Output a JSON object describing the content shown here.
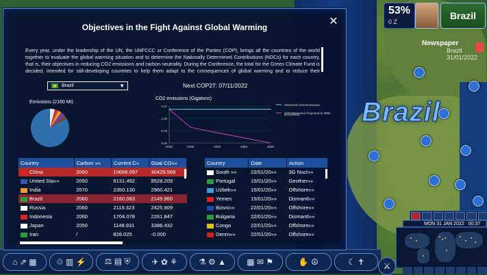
{
  "panel": {
    "title": "Objectives in the Fight Against Global Warming",
    "description": "Every year, under the leadership of the UN, the UNFCCC or Conference of the Parties (COP), brings all the countries of the world together to evaluate the global warming situation and to determine the Nationally Determined Contributions (NDCs) for each country, that is, their objectives in reducing CO2 emissions and carbon neutrality. During the Conference, the total for the Green Climate Fund is decided, intended for still-developing countries to help them adapt to the consequences of global warming and to reduce their emissions. Ultimately, objectives set are to",
    "selected_country": "Brazil",
    "next_cop": "Next COP27: 07/11/2022",
    "emissions_label": "Emissions (2160 Mt)"
  },
  "chart_data": {
    "type": "line",
    "title": "CO2 emissions (Gigatons)",
    "x": [
      2022,
      2030,
      2040,
      2050,
      2060
    ],
    "xlim": [
      2022,
      2060
    ],
    "ylim": [
      0,
      2.37
    ],
    "yticks": [
      "0.00",
      "0.79",
      "1.58",
      "2.37"
    ],
    "xticks": [
      "2022",
      "2030",
      "2040",
      "2050",
      "2060"
    ],
    "series": [
      {
        "name": "Observed CO2 Emissions",
        "color": "#7fd6f0",
        "values": [
          2.16,
          2.16,
          2.16,
          2.16,
          2.16
        ]
      },
      {
        "name": "CO2 Emissions Projected to 2060",
        "color": "#d040d0",
        "values": [
          2.16,
          1.0,
          0.66,
          0.33,
          0.0
        ]
      }
    ],
    "projected_label_date": "01/01/2022"
  },
  "pie_colors": [
    "#e8eaf0",
    "#cc3333",
    "#e0a020",
    "#7c3aa0",
    "#6a5030",
    "#2f6fb0"
  ],
  "left_table": {
    "headers": [
      "Country",
      "Carbon »»",
      "Current C»",
      "Goal CO»»"
    ],
    "rows": [
      {
        "country": "China",
        "carbon": "2060",
        "current": "10668.097",
        "goal": "30426.569",
        "flag": "#d22"
      },
      {
        "country": "United Sta»»",
        "carbon": "2050",
        "current": "6131.492",
        "goal": "9528.209",
        "flag": "#3355aa"
      },
      {
        "country": "India",
        "carbon": "2070",
        "current": "2350.130",
        "goal": "2960.421",
        "flag": "#f49a33"
      },
      {
        "country": "Brazil",
        "carbon": "2060",
        "current": "2160.063",
        "goal": "2149.960",
        "flag": "#2a9d3a"
      },
      {
        "country": "Russia",
        "carbon": "2060",
        "current": "2119.323",
        "goal": "2425.909",
        "flag": "#ffffff"
      },
      {
        "country": "Indonesia",
        "carbon": "2060",
        "current": "1704.078",
        "goal": "2261.847",
        "flag": "#d22"
      },
      {
        "country": "Japan",
        "carbon": "2050",
        "current": "1148.931",
        "goal": "3386.432",
        "flag": "#ffffff"
      },
      {
        "country": "Iran",
        "carbon": "/",
        "current": "828.025",
        "goal": "-0.000",
        "flag": "#2a9d3a"
      }
    ]
  },
  "right_table": {
    "headers": [
      "Country",
      "Date",
      "Action"
    ],
    "rows": [
      {
        "country": "South »»",
        "date": "22/01/20»»",
        "action": "3G Nucl»»",
        "flag": "#ffffff"
      },
      {
        "country": "Portugal",
        "date": "15/01/20»»",
        "action": "Geother»»",
        "flag": "#2a9d3a"
      },
      {
        "country": "Uzbek»»",
        "date": "15/01/20»»",
        "action": "Offshore»»",
        "flag": "#3aa0d0"
      },
      {
        "country": "Yemen",
        "date": "15/01/20»»",
        "action": "Dismantl»»",
        "flag": "#d22"
      },
      {
        "country": "Bosni»»",
        "date": "22/01/20»»",
        "action": "Offshore»»",
        "flag": "#2244aa"
      },
      {
        "country": "Bulgaria",
        "date": "22/01/20»»",
        "action": "Dismantl»»",
        "flag": "#2a9d3a"
      },
      {
        "country": "Congo",
        "date": "22/01/20»»",
        "action": "Offshore»»",
        "flag": "#e0c020"
      },
      {
        "country": "Denm»»",
        "date": "22/01/20»»",
        "action": "Offshore»»",
        "flag": "#c22"
      }
    ]
  },
  "hud": {
    "approval": "53%",
    "approval_sub": "0 Z",
    "country": "Brazil",
    "newspaper_title": "Newspaper",
    "newspaper_line1": "Brazil",
    "newspaper_line2": "31/01/2022",
    "date": "MON 31 JAN 2022",
    "time": "00:37"
  },
  "map": {
    "label": "Brazil"
  },
  "toolbar": {
    "groups": [
      {
        "name": "economy",
        "icons": "⌂ ⇗ ▦"
      },
      {
        "name": "environment",
        "icons": "♲ ▥ ⚡"
      },
      {
        "name": "justice",
        "icons": "⚖ ▤ ⛨"
      },
      {
        "name": "transport",
        "icons": "✈ ✿ ⚘"
      },
      {
        "name": "research",
        "icons": "⚗ ⚙ ▲"
      },
      {
        "name": "culture",
        "icons": "▦ ✉ ⚑"
      },
      {
        "name": "diplomacy",
        "icons": "✋ ☮"
      },
      {
        "name": "religion",
        "icons": "☾ ✝"
      }
    ],
    "extra": "⚔"
  }
}
